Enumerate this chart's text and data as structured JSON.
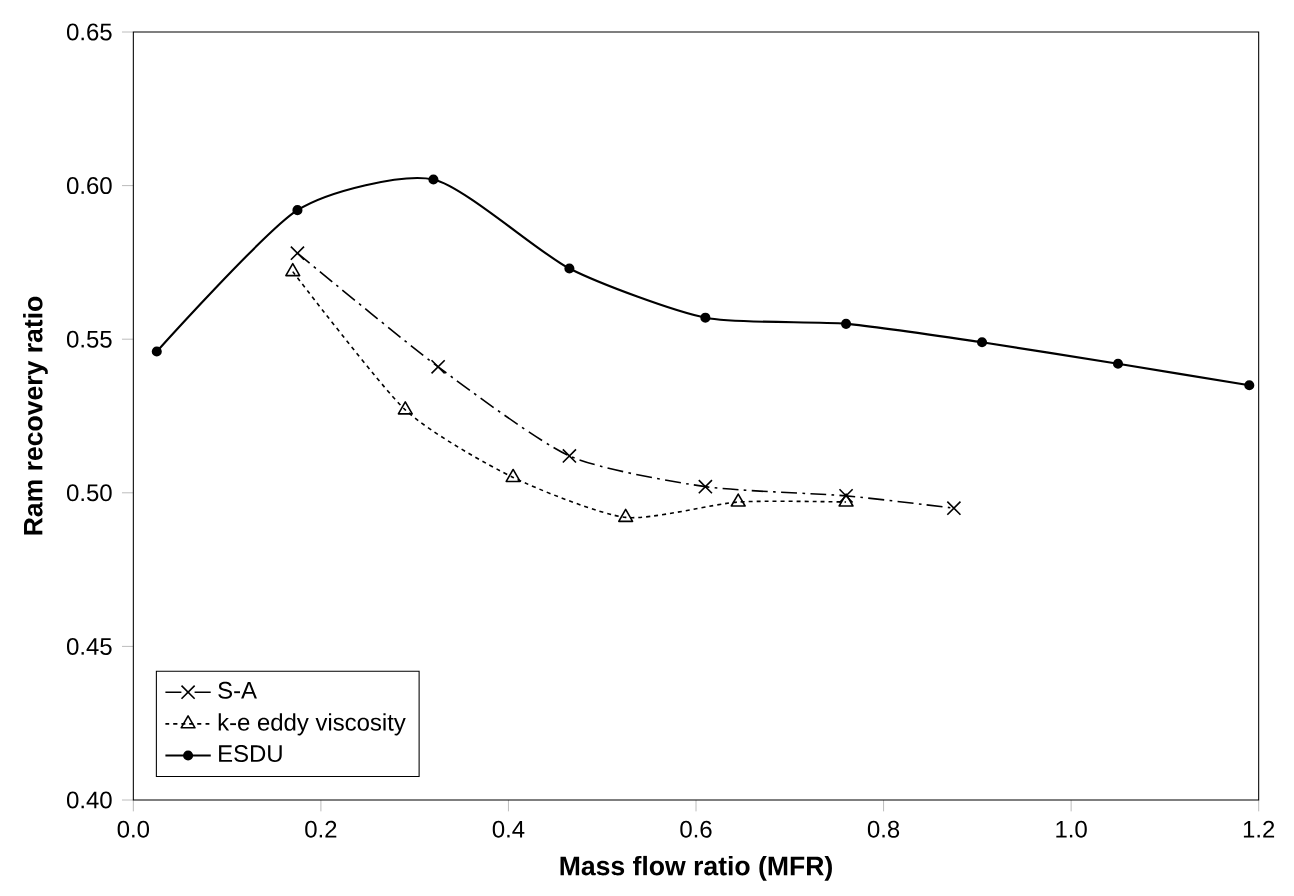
{
  "chart_data": {
    "type": "line",
    "xlabel": "Mass flow ratio (MFR)",
    "ylabel": "Ram recovery ratio",
    "xlim": [
      0,
      1.2
    ],
    "ylim": [
      0.4,
      0.65
    ],
    "xticks": [
      {
        "value": 0,
        "label": "0.0"
      },
      {
        "value": 0.2,
        "label": "0.2"
      },
      {
        "value": 0.4,
        "label": "0.4"
      },
      {
        "value": 0.6,
        "label": "0.6"
      },
      {
        "value": 0.8,
        "label": "0.8"
      },
      {
        "value": 1.0,
        "label": "1.0"
      },
      {
        "value": 1.2,
        "label": "1.2"
      }
    ],
    "yticks": [
      {
        "value": 0.4,
        "label": "0.40"
      },
      {
        "value": 0.45,
        "label": "0.45"
      },
      {
        "value": 0.5,
        "label": "0.50"
      },
      {
        "value": 0.55,
        "label": "0.55"
      },
      {
        "value": 0.6,
        "label": "0.60"
      },
      {
        "value": 0.65,
        "label": "0.65"
      }
    ],
    "grid": false,
    "legend": "bottom left",
    "series": [
      {
        "name": "S-A",
        "color": "#000000",
        "marker": "cross",
        "line_style": "dashed",
        "x": [
          0.175,
          0.325,
          0.465,
          0.61,
          0.76,
          0.875
        ],
        "values": [
          0.578,
          0.541,
          0.512,
          0.502,
          0.499,
          0.495
        ]
      },
      {
        "name": "k-e eddy viscosity",
        "color": "#000000",
        "marker": "triangle",
        "line_style": "dotted",
        "x": [
          0.17,
          0.29,
          0.405,
          0.525,
          0.645,
          0.76
        ],
        "values": [
          0.572,
          0.527,
          0.505,
          0.492,
          0.497,
          0.497
        ]
      },
      {
        "name": "ESDU",
        "color": "#000000",
        "marker": "circle",
        "line_style": "solid",
        "x": [
          0.025,
          0.175,
          0.32,
          0.465,
          0.61,
          0.76,
          0.905,
          1.05,
          1.19
        ],
        "values": [
          0.546,
          0.592,
          0.602,
          0.573,
          0.557,
          0.555,
          0.549,
          0.542,
          0.535
        ]
      }
    ]
  }
}
